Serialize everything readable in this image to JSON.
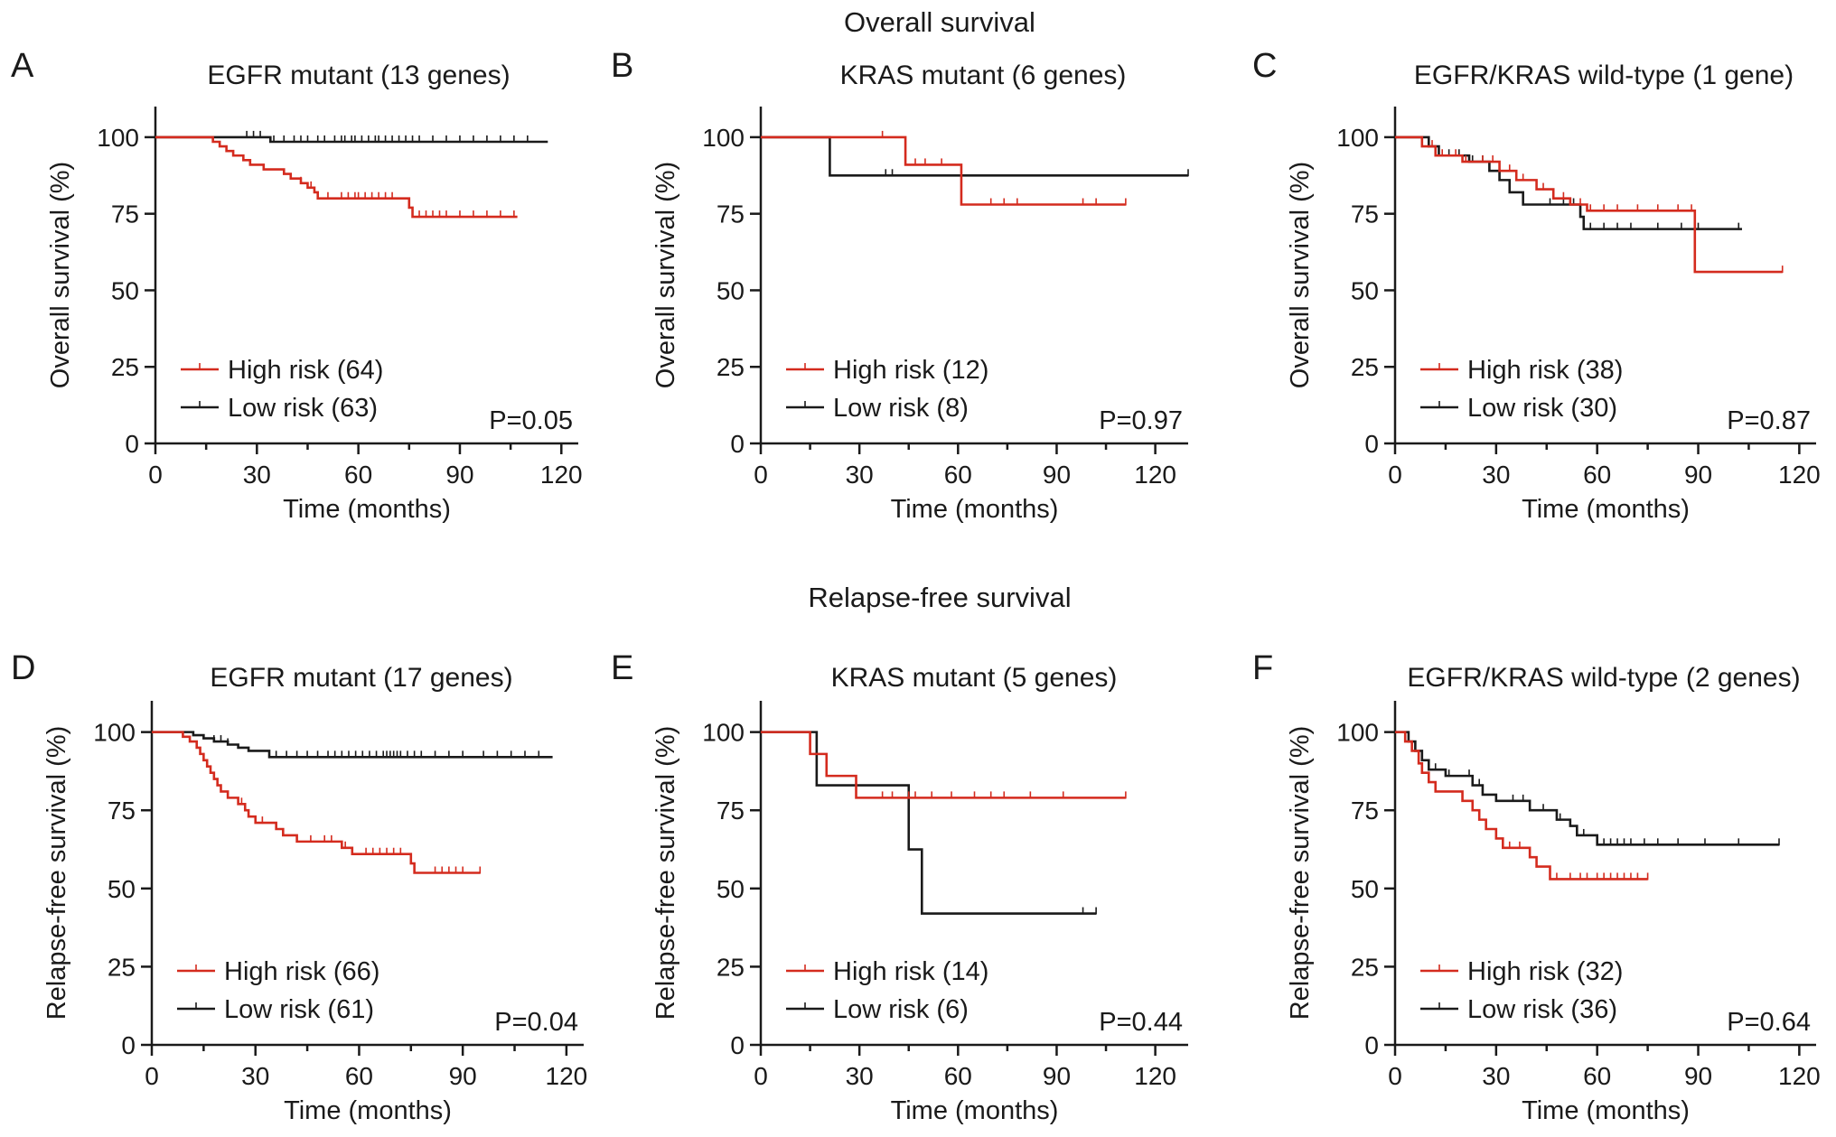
{
  "section_titles": {
    "top": "Overall survival",
    "bottom": "Relapse-free survival"
  },
  "colors": {
    "high": "#d42b1e",
    "low": "#1a1a1a"
  },
  "chart_data": [
    {
      "type": "line",
      "letter": "A",
      "title": "EGFR mutant (13 genes)",
      "xlabel": "Time (months)",
      "ylabel": "Overall survival (%)",
      "xlim": [
        0,
        125
      ],
      "ylim": [
        0,
        110
      ],
      "xticks": [
        0,
        30,
        60,
        90,
        120
      ],
      "yticks": [
        0,
        25,
        50,
        75,
        100
      ],
      "pvalue": "P=0.05",
      "series": [
        {
          "name": "High risk (64)",
          "color": "#d42b1e",
          "steps": [
            [
              0,
              100
            ],
            [
              17,
              98.5
            ],
            [
              19,
              97
            ],
            [
              21,
              95.5
            ],
            [
              23,
              94
            ],
            [
              26,
              92.5
            ],
            [
              28,
              91
            ],
            [
              32,
              89.5
            ],
            [
              38,
              88
            ],
            [
              40,
              86.5
            ],
            [
              43,
              85
            ],
            [
              45,
              83.5
            ],
            [
              47,
              82
            ],
            [
              48,
              80
            ],
            [
              75,
              77
            ],
            [
              76,
              74
            ],
            [
              107,
              74
            ]
          ],
          "censors": [
            43,
            46,
            51,
            55,
            57,
            59,
            60,
            62,
            64,
            66,
            68,
            70,
            78,
            80,
            82,
            84,
            86,
            90,
            94,
            98,
            102,
            106
          ]
        },
        {
          "name": "Low risk (63)",
          "color": "#1a1a1a",
          "steps": [
            [
              0,
              100
            ],
            [
              34,
              98.5
            ],
            [
              116,
              98.5
            ]
          ],
          "censors": [
            27,
            29,
            31,
            35,
            38,
            41,
            43,
            45,
            48,
            50,
            53,
            55,
            56,
            58,
            59,
            61,
            63,
            65,
            66,
            68,
            70,
            72,
            74,
            76,
            78,
            82,
            86,
            90,
            94,
            98,
            102,
            106,
            110
          ]
        }
      ]
    },
    {
      "type": "line",
      "letter": "B",
      "title": "KRAS mutant (6 genes)",
      "xlabel": "Time (months)",
      "ylabel": "Overall survival (%)",
      "xlim": [
        0,
        130
      ],
      "ylim": [
        0,
        110
      ],
      "xticks": [
        0,
        30,
        60,
        90,
        120
      ],
      "yticks": [
        0,
        25,
        50,
        75,
        100
      ],
      "pvalue": "P=0.97",
      "series": [
        {
          "name": "High risk (12)",
          "color": "#d42b1e",
          "steps": [
            [
              0,
              100
            ],
            [
              44,
              91
            ],
            [
              61,
              78
            ],
            [
              111,
              78
            ]
          ],
          "censors": [
            37,
            47,
            50,
            55,
            70,
            74,
            78,
            98,
            102,
            111
          ]
        },
        {
          "name": "Low risk (8)",
          "color": "#1a1a1a",
          "steps": [
            [
              0,
              100
            ],
            [
              21,
              87.5
            ],
            [
              130,
              87.5
            ]
          ],
          "censors": [
            38,
            40,
            130
          ]
        }
      ]
    },
    {
      "type": "line",
      "letter": "C",
      "title": "EGFR/KRAS wild-type (1 gene)",
      "xlabel": "Time (months)",
      "ylabel": "Overall survival (%)",
      "xlim": [
        0,
        125
      ],
      "ylim": [
        0,
        110
      ],
      "xticks": [
        0,
        30,
        60,
        90,
        120
      ],
      "yticks": [
        0,
        25,
        50,
        75,
        100
      ],
      "pvalue": "P=0.87",
      "series": [
        {
          "name": "High risk (38)",
          "color": "#d42b1e",
          "steps": [
            [
              0,
              100
            ],
            [
              8,
              97
            ],
            [
              12,
              94
            ],
            [
              20,
              92
            ],
            [
              31,
              89
            ],
            [
              36,
              86
            ],
            [
              42,
              83
            ],
            [
              47,
              80
            ],
            [
              52,
              78
            ],
            [
              57,
              76
            ],
            [
              89,
              56
            ],
            [
              115,
              56
            ]
          ],
          "censors": [
            11,
            14,
            18,
            21,
            26,
            29,
            34,
            38,
            44,
            50,
            55,
            58,
            62,
            66,
            72,
            78,
            84,
            88,
            115
          ]
        },
        {
          "name": "Low risk (30)",
          "color": "#1a1a1a",
          "steps": [
            [
              0,
              100
            ],
            [
              10,
              97
            ],
            [
              13,
              94
            ],
            [
              22,
              92
            ],
            [
              28,
              89
            ],
            [
              31,
              86
            ],
            [
              34,
              82
            ],
            [
              38,
              78
            ],
            [
              55,
              74
            ],
            [
              56,
              70
            ],
            [
              103,
              70
            ]
          ],
          "censors": [
            16,
            19,
            23,
            26,
            46,
            50,
            53,
            58,
            62,
            66,
            70,
            78,
            85,
            90,
            102
          ]
        }
      ]
    },
    {
      "type": "line",
      "letter": "D",
      "title": "EGFR mutant (17 genes)",
      "xlabel": "Time (months)",
      "ylabel": "Relapse-free survival (%)",
      "xlim": [
        0,
        125
      ],
      "ylim": [
        0,
        110
      ],
      "xticks": [
        0,
        30,
        60,
        90,
        120
      ],
      "yticks": [
        0,
        25,
        50,
        75,
        100
      ],
      "pvalue": "P=0.04",
      "series": [
        {
          "name": "High risk (66)",
          "color": "#d42b1e",
          "steps": [
            [
              0,
              100
            ],
            [
              9,
              98.5
            ],
            [
              11,
              97
            ],
            [
              13,
              95
            ],
            [
              14,
              93
            ],
            [
              15,
              91
            ],
            [
              16,
              89
            ],
            [
              17,
              87
            ],
            [
              18,
              85
            ],
            [
              19,
              83
            ],
            [
              20,
              81
            ],
            [
              22,
              79
            ],
            [
              25,
              77
            ],
            [
              27,
              75
            ],
            [
              28,
              73
            ],
            [
              30,
              71
            ],
            [
              36,
              69
            ],
            [
              38,
              67
            ],
            [
              42,
              65
            ],
            [
              55,
              63
            ],
            [
              58,
              61
            ],
            [
              75,
              58
            ],
            [
              76,
              55
            ],
            [
              95,
              55
            ]
          ],
          "censors": [
            26,
            32,
            46,
            50,
            52,
            56,
            62,
            64,
            66,
            68,
            70,
            72,
            82,
            84,
            86,
            88,
            90,
            95
          ]
        },
        {
          "name": "Low risk (61)",
          "color": "#1a1a1a",
          "steps": [
            [
              0,
              100
            ],
            [
              12,
              99
            ],
            [
              15,
              98
            ],
            [
              18,
              97
            ],
            [
              22,
              96
            ],
            [
              25,
              95
            ],
            [
              28,
              94
            ],
            [
              34,
              92
            ],
            [
              116,
              92
            ]
          ],
          "censors": [
            18,
            20,
            22,
            36,
            39,
            42,
            45,
            48,
            51,
            53,
            55,
            57,
            59,
            61,
            63,
            65,
            67,
            68,
            69,
            70,
            71,
            72,
            74,
            76,
            78,
            82,
            86,
            90,
            96,
            100,
            104,
            108,
            112
          ]
        }
      ]
    },
    {
      "type": "line",
      "letter": "E",
      "title": "KRAS mutant (5 genes)",
      "xlabel": "Time (months)",
      "ylabel": "Relapse-free survival (%)",
      "xlim": [
        0,
        130
      ],
      "ylim": [
        0,
        110
      ],
      "xticks": [
        0,
        30,
        60,
        90,
        120
      ],
      "yticks": [
        0,
        25,
        50,
        75,
        100
      ],
      "pvalue": "P=0.44",
      "series": [
        {
          "name": "High risk (14)",
          "color": "#d42b1e",
          "steps": [
            [
              0,
              100
            ],
            [
              15,
              93
            ],
            [
              20,
              86
            ],
            [
              29,
              79
            ],
            [
              111,
              79
            ]
          ],
          "censors": [
            37,
            40,
            45,
            47,
            52,
            58,
            65,
            70,
            74,
            82,
            92,
            111
          ]
        },
        {
          "name": "Low risk (6)",
          "color": "#1a1a1a",
          "steps": [
            [
              0,
              100
            ],
            [
              17,
              83
            ],
            [
              45,
              62.5
            ],
            [
              49,
              42
            ],
            [
              102,
              42
            ]
          ],
          "censors": [
            98,
            102
          ]
        }
      ]
    },
    {
      "type": "line",
      "letter": "F",
      "title": "EGFR/KRAS wild-type (2 genes)",
      "xlabel": "Time (months)",
      "ylabel": "Relapse-free survival (%)",
      "xlim": [
        0,
        125
      ],
      "ylim": [
        0,
        110
      ],
      "xticks": [
        0,
        30,
        60,
        90,
        120
      ],
      "yticks": [
        0,
        25,
        50,
        75,
        100
      ],
      "pvalue": "P=0.64",
      "series": [
        {
          "name": "High risk (32)",
          "color": "#d42b1e",
          "steps": [
            [
              0,
              100
            ],
            [
              3,
              97
            ],
            [
              5,
              94
            ],
            [
              7,
              90
            ],
            [
              8,
              87
            ],
            [
              10,
              84
            ],
            [
              12,
              81
            ],
            [
              20,
              78
            ],
            [
              23,
              75
            ],
            [
              25,
              72
            ],
            [
              27,
              69
            ],
            [
              30,
              66
            ],
            [
              32,
              63
            ],
            [
              40,
              60
            ],
            [
              42,
              57
            ],
            [
              46,
              53
            ],
            [
              75,
              53
            ]
          ],
          "censors": [
            34,
            37,
            48,
            52,
            55,
            57,
            60,
            62,
            64,
            66,
            68,
            70,
            72,
            75
          ]
        },
        {
          "name": "Low risk (36)",
          "color": "#1a1a1a",
          "steps": [
            [
              0,
              100
            ],
            [
              4,
              97
            ],
            [
              6,
              94
            ],
            [
              8,
              91
            ],
            [
              10,
              88
            ],
            [
              15,
              86
            ],
            [
              23,
              83
            ],
            [
              26,
              80
            ],
            [
              30,
              78
            ],
            [
              40,
              75
            ],
            [
              48,
              72
            ],
            [
              52,
              70
            ],
            [
              54,
              67
            ],
            [
              60,
              64
            ],
            [
              114,
              64
            ]
          ],
          "censors": [
            12,
            16,
            22,
            25,
            35,
            38,
            44,
            49,
            56,
            60,
            62,
            64,
            66,
            68,
            70,
            74,
            78,
            84,
            92,
            102,
            114
          ]
        }
      ]
    }
  ]
}
